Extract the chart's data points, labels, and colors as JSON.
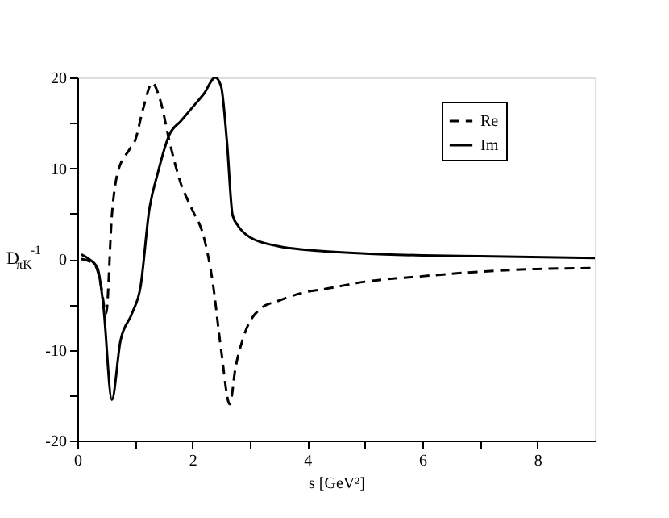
{
  "chart_data": {
    "type": "line",
    "xlabel": "s [GeV²]",
    "ylabel": "D$_{πK}$$^{-1}$",
    "xlim": [
      0,
      9
    ],
    "ylim": [
      -20,
      20
    ],
    "xticks": [
      0,
      {
        "value": 1,
        "label": null
      },
      2,
      {
        "value": 3,
        "label": null
      },
      4,
      {
        "value": 5,
        "label": null
      },
      6,
      {
        "value": 7,
        "label": null
      },
      8
    ],
    "yticks": [
      -20,
      {
        "value": -15,
        "label": null
      },
      -10,
      {
        "value": -5,
        "label": null
      },
      0,
      {
        "value": 5,
        "label": null
      },
      10,
      {
        "value": 15,
        "label": null
      },
      20
    ],
    "grid": false,
    "legend": "top right",
    "marker": "none",
    "series": [
      {
        "name": "Re",
        "color": "#000000",
        "line_style": "dashed",
        "x": [
          0.07,
          0.3,
          0.4,
          0.5,
          0.6,
          0.7,
          0.9,
          1.0,
          1.15,
          1.3,
          1.45,
          1.6,
          1.8,
          2.0,
          2.2,
          2.35,
          2.5,
          2.65,
          2.75,
          2.9,
          3.2,
          3.5,
          4.0,
          4.3,
          5,
          6,
          7,
          8,
          9
        ],
        "values": [
          0,
          -0.6,
          -2.5,
          -6,
          4.8,
          9.5,
          12,
          13,
          16.7,
          19.4,
          17.3,
          13,
          8.3,
          5.4,
          2.4,
          -2.4,
          -10,
          -16,
          -12,
          -8.4,
          -5.4,
          -4.6,
          -3.6,
          -3.3,
          -2.5,
          -1.9,
          -1.4,
          -1.1,
          -1.0
        ]
      },
      {
        "name": "Im",
        "color": "#000000",
        "line_style": "solid",
        "x": [
          0.07,
          0.2,
          0.35,
          0.45,
          0.6,
          0.75,
          0.95,
          1.1,
          1.25,
          1.4,
          1.6,
          1.8,
          2.0,
          2.2,
          2.4,
          2.5,
          2.6,
          2.7,
          2.8,
          3.0,
          3.5,
          4.0,
          5,
          6,
          7,
          9
        ],
        "values": [
          0.5,
          0,
          -1,
          -5,
          -15.5,
          -9,
          -6,
          -3,
          5.4,
          9.5,
          13.7,
          15.2,
          16.7,
          18.2,
          20,
          19,
          13,
          4.8,
          3.6,
          2.4,
          1.4,
          1.0,
          0.6,
          0.4,
          0.3,
          0.1
        ]
      }
    ]
  }
}
